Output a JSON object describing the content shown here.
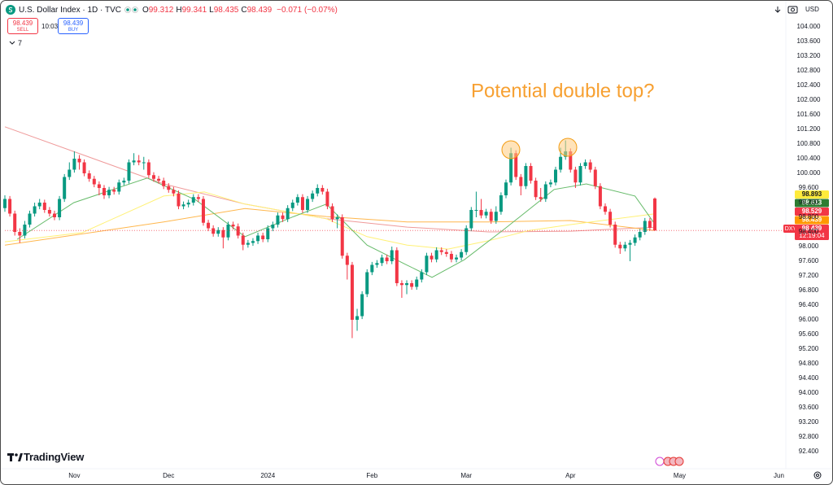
{
  "header": {
    "title": "U.S. Dollar Index · 1D · TVC",
    "ohlc_letters": [
      "O",
      "H",
      "L",
      "C"
    ],
    "change": "−0.071",
    "change_pct": "(−0.07%)",
    "sell": "SELL",
    "buy": "BUY",
    "spread": "10:03",
    "indicator_count": "7",
    "currency": "USD"
  },
  "footer": {
    "brand": "TradingView"
  },
  "chart_data": {
    "type": "candlestick",
    "annotation": "Potential double top?",
    "up_color": "#089981",
    "down_color": "#f23645",
    "xlim": [
      0,
      157.4
    ],
    "ylim": [
      91.933,
      104.711
    ],
    "xticks": [
      {
        "value": 14,
        "label": "Nov"
      },
      {
        "value": 33,
        "label": "Dec"
      },
      {
        "value": 53,
        "label": "2024"
      },
      {
        "value": 74,
        "label": "Feb"
      },
      {
        "value": 93,
        "label": "Mar"
      },
      {
        "value": 114,
        "label": "Apr"
      },
      {
        "value": 136,
        "label": "May"
      },
      {
        "value": 156,
        "label": "Jun"
      }
    ],
    "yticks": [
      {
        "value": 104.0,
        "label": "104.000"
      },
      {
        "value": 103.6,
        "label": "103.600"
      },
      {
        "value": 103.2,
        "label": "103.200"
      },
      {
        "value": 102.8,
        "label": "102.800"
      },
      {
        "value": 102.4,
        "label": "102.400"
      },
      {
        "value": 102.0,
        "label": "102.000"
      },
      {
        "value": 101.6,
        "label": "101.600"
      },
      {
        "value": 101.2,
        "label": "101.200"
      },
      {
        "value": 100.8,
        "label": "100.800"
      },
      {
        "value": 100.4,
        "label": "100.400"
      },
      {
        "value": 100.0,
        "label": "100.000"
      },
      {
        "value": 99.6,
        "label": "99.600"
      },
      {
        "value": 99.2,
        "label": "99.200"
      },
      {
        "value": 98.8,
        "label": "98.800"
      },
      {
        "value": 98.4,
        "label": "98.400"
      },
      {
        "value": 98.0,
        "label": "98.000"
      },
      {
        "value": 97.6,
        "label": "97.600"
      },
      {
        "value": 97.2,
        "label": "97.200"
      },
      {
        "value": 96.8,
        "label": "96.800"
      },
      {
        "value": 96.4,
        "label": "96.400"
      },
      {
        "value": 96.0,
        "label": "96.000"
      },
      {
        "value": 95.6,
        "label": "95.600"
      },
      {
        "value": 95.2,
        "label": "95.200"
      },
      {
        "value": 94.8,
        "label": "94.800"
      },
      {
        "value": 94.4,
        "label": "94.400"
      },
      {
        "value": 94.0,
        "label": "94.000"
      },
      {
        "value": 93.6,
        "label": "93.600"
      },
      {
        "value": 93.2,
        "label": "93.200"
      },
      {
        "value": 92.8,
        "label": "92.800"
      },
      {
        "value": 92.4,
        "label": "92.400"
      }
    ],
    "ohlc": [
      [
        99.05,
        99.4,
        98.95,
        99.3
      ],
      [
        99.3,
        99.38,
        98.82,
        98.9
      ],
      [
        98.9,
        98.98,
        98.3,
        98.4
      ],
      [
        98.4,
        98.5,
        98.1,
        98.3
      ],
      [
        98.3,
        98.7,
        98.22,
        98.6
      ],
      [
        98.6,
        98.98,
        98.52,
        98.9
      ],
      [
        98.9,
        99.2,
        98.82,
        99.1
      ],
      [
        99.1,
        99.3,
        99.02,
        99.2
      ],
      [
        99.2,
        99.28,
        98.92,
        99.0
      ],
      [
        99.0,
        99.08,
        98.82,
        98.9
      ],
      [
        98.9,
        98.98,
        98.72,
        98.8
      ],
      [
        98.8,
        99.38,
        98.72,
        99.3
      ],
      [
        99.3,
        99.98,
        99.22,
        99.9
      ],
      [
        99.9,
        100.3,
        99.82,
        100.1
      ],
      [
        100.1,
        100.6,
        100.02,
        100.4
      ],
      [
        100.4,
        100.5,
        100.1,
        100.3
      ],
      [
        100.3,
        100.38,
        99.92,
        100.0
      ],
      [
        100.0,
        100.08,
        99.77,
        99.85
      ],
      [
        99.85,
        99.93,
        99.62,
        99.7
      ],
      [
        99.7,
        99.78,
        99.4,
        99.6
      ],
      [
        99.6,
        99.68,
        99.3,
        99.4
      ],
      [
        99.4,
        99.63,
        99.32,
        99.55
      ],
      [
        99.55,
        99.63,
        99.42,
        99.5
      ],
      [
        99.5,
        99.83,
        99.42,
        99.75
      ],
      [
        99.75,
        99.88,
        99.67,
        99.8
      ],
      [
        99.8,
        100.38,
        99.72,
        100.3
      ],
      [
        100.3,
        100.55,
        100.22,
        100.35
      ],
      [
        100.35,
        100.5,
        100.22,
        100.3
      ],
      [
        100.3,
        100.45,
        100.1,
        100.3
      ],
      [
        100.3,
        100.38,
        99.87,
        99.95
      ],
      [
        99.95,
        100.03,
        99.77,
        99.85
      ],
      [
        99.85,
        99.93,
        99.72,
        99.8
      ],
      [
        99.8,
        99.88,
        99.57,
        99.65
      ],
      [
        99.65,
        99.73,
        99.47,
        99.55
      ],
      [
        99.55,
        99.63,
        99.37,
        99.45
      ],
      [
        99.45,
        99.53,
        99.02,
        99.1
      ],
      [
        99.1,
        99.23,
        99.02,
        99.15
      ],
      [
        99.15,
        99.28,
        99.07,
        99.2
      ],
      [
        99.2,
        99.43,
        99.12,
        99.35
      ],
      [
        99.35,
        99.43,
        99.22,
        99.3
      ],
      [
        99.3,
        99.38,
        98.57,
        98.65
      ],
      [
        98.65,
        98.73,
        98.42,
        98.5
      ],
      [
        98.5,
        98.58,
        98.27,
        98.35
      ],
      [
        98.35,
        98.53,
        98.27,
        98.45
      ],
      [
        98.45,
        98.53,
        97.95,
        98.25
      ],
      [
        98.25,
        98.68,
        98.17,
        98.6
      ],
      [
        98.6,
        98.68,
        98.47,
        98.55
      ],
      [
        98.55,
        98.63,
        98.22,
        98.3
      ],
      [
        98.3,
        98.38,
        97.9,
        98.05
      ],
      [
        98.05,
        98.18,
        97.97,
        98.1
      ],
      [
        98.1,
        98.23,
        98.02,
        98.15
      ],
      [
        98.15,
        98.38,
        98.07,
        98.3
      ],
      [
        98.3,
        98.38,
        98.12,
        98.2
      ],
      [
        98.2,
        98.58,
        98.12,
        98.5
      ],
      [
        98.5,
        98.68,
        98.42,
        98.6
      ],
      [
        98.6,
        98.93,
        98.52,
        98.85
      ],
      [
        98.85,
        98.93,
        98.67,
        98.75
      ],
      [
        98.75,
        99.13,
        98.67,
        99.05
      ],
      [
        99.05,
        99.28,
        98.97,
        99.2
      ],
      [
        99.2,
        99.43,
        99.12,
        99.35
      ],
      [
        99.35,
        99.43,
        98.92,
        99.0
      ],
      [
        99.0,
        99.38,
        98.92,
        99.3
      ],
      [
        99.3,
        99.53,
        99.22,
        99.45
      ],
      [
        99.45,
        99.7,
        99.37,
        99.6
      ],
      [
        99.6,
        99.68,
        99.42,
        99.5
      ],
      [
        99.5,
        99.58,
        99.02,
        99.1
      ],
      [
        99.1,
        99.18,
        98.67,
        98.75
      ],
      [
        98.75,
        98.88,
        98.5,
        98.8
      ],
      [
        98.8,
        98.88,
        97.67,
        97.75
      ],
      [
        97.75,
        97.83,
        97.1,
        97.5
      ],
      [
        97.5,
        97.58,
        95.5,
        96.0
      ],
      [
        96.0,
        96.3,
        95.7,
        96.1
      ],
      [
        96.1,
        96.78,
        96.02,
        96.7
      ],
      [
        96.7,
        97.38,
        96.62,
        97.3
      ],
      [
        97.3,
        97.58,
        97.22,
        97.5
      ],
      [
        97.5,
        97.63,
        97.42,
        97.55
      ],
      [
        97.55,
        97.78,
        97.47,
        97.7
      ],
      [
        97.7,
        97.78,
        97.52,
        97.6
      ],
      [
        97.6,
        98.0,
        97.52,
        97.9
      ],
      [
        97.9,
        97.98,
        96.92,
        97.0
      ],
      [
        97.0,
        97.08,
        96.6,
        96.95
      ],
      [
        96.95,
        97.08,
        96.7,
        97.0
      ],
      [
        97.0,
        97.08,
        96.82,
        96.9
      ],
      [
        96.9,
        97.18,
        96.82,
        97.1
      ],
      [
        97.1,
        97.38,
        97.02,
        97.3
      ],
      [
        97.3,
        97.83,
        97.22,
        97.75
      ],
      [
        97.75,
        97.83,
        97.57,
        97.65
      ],
      [
        97.65,
        97.98,
        97.57,
        97.9
      ],
      [
        97.9,
        97.98,
        97.77,
        97.85
      ],
      [
        97.85,
        97.93,
        97.72,
        97.8
      ],
      [
        97.8,
        97.88,
        97.57,
        97.65
      ],
      [
        97.65,
        97.78,
        97.57,
        97.7
      ],
      [
        97.7,
        97.93,
        97.62,
        97.85
      ],
      [
        97.85,
        98.58,
        97.77,
        98.5
      ],
      [
        98.5,
        99.08,
        98.42,
        99.0
      ],
      [
        99.0,
        99.5,
        98.8,
        99.0
      ],
      [
        99.0,
        99.3,
        98.77,
        98.85
      ],
      [
        98.85,
        99.03,
        98.77,
        98.95
      ],
      [
        98.95,
        99.03,
        98.62,
        98.7
      ],
      [
        98.7,
        99.1,
        98.62,
        98.95
      ],
      [
        98.95,
        99.48,
        98.87,
        99.4
      ],
      [
        99.4,
        99.83,
        99.32,
        99.75
      ],
      [
        99.75,
        100.7,
        99.67,
        100.55
      ],
      [
        100.55,
        100.63,
        99.82,
        99.9
      ],
      [
        99.9,
        99.98,
        99.4,
        99.65
      ],
      [
        99.65,
        100.28,
        99.57,
        100.2
      ],
      [
        100.2,
        100.28,
        99.72,
        99.8
      ],
      [
        99.8,
        99.88,
        99.27,
        99.35
      ],
      [
        99.35,
        99.6,
        99.22,
        99.3
      ],
      [
        99.3,
        99.78,
        99.22,
        99.7
      ],
      [
        99.7,
        99.83,
        99.62,
        99.75
      ],
      [
        99.75,
        100.18,
        99.67,
        100.1
      ],
      [
        100.1,
        100.7,
        100.02,
        100.45
      ],
      [
        100.45,
        100.9,
        100.37,
        100.6
      ],
      [
        100.6,
        100.68,
        100.02,
        100.1
      ],
      [
        100.1,
        100.18,
        99.6,
        99.75
      ],
      [
        99.75,
        100.28,
        99.67,
        100.2
      ],
      [
        100.2,
        100.38,
        100.12,
        100.3
      ],
      [
        100.3,
        100.38,
        100.02,
        100.1
      ],
      [
        100.1,
        100.18,
        99.57,
        99.65
      ],
      [
        99.65,
        99.73,
        99.02,
        99.1
      ],
      [
        99.1,
        99.18,
        98.87,
        98.95
      ],
      [
        98.95,
        99.03,
        98.52,
        98.6
      ],
      [
        98.6,
        98.68,
        97.97,
        98.05
      ],
      [
        98.05,
        98.13,
        97.8,
        97.95
      ],
      [
        97.95,
        98.13,
        97.87,
        98.05
      ],
      [
        98.05,
        98.18,
        97.6,
        98.1
      ],
      [
        98.1,
        98.33,
        98.02,
        98.25
      ],
      [
        98.25,
        98.48,
        98.17,
        98.4
      ],
      [
        98.4,
        98.78,
        98.32,
        98.7
      ],
      [
        98.7,
        98.78,
        98.43,
        98.51
      ],
      [
        99.312,
        99.341,
        98.435,
        98.439
      ]
    ],
    "moving_averages": [
      {
        "color": "#ef9a9a",
        "x": [
          0,
          16,
          32,
          48.4,
          64.8,
          81.1,
          97.5,
          114,
          131
        ],
        "values": [
          101.27,
          100.49,
          99.71,
          99.16,
          98.76,
          98.53,
          98.4,
          98.42,
          98.529
        ]
      },
      {
        "color": "#ffb74d",
        "x": [
          0,
          32,
          48.4,
          64.8,
          81.1,
          97.5,
          114,
          131
        ],
        "values": [
          98.04,
          98.67,
          99.04,
          98.82,
          98.67,
          98.67,
          98.71,
          98.439
        ]
      },
      {
        "color": "#fff176",
        "x": [
          0,
          15.6,
          32,
          40.2,
          48.4,
          64.8,
          73,
          81.1,
          89.3,
          97.5,
          105.7,
          114,
          131
        ],
        "values": [
          98.13,
          98.38,
          99.38,
          99.49,
          99.16,
          98.76,
          98.27,
          98.04,
          97.93,
          98.16,
          98.44,
          98.6,
          98.893
        ]
      },
      {
        "color": "#66bb6a",
        "x": [
          2.5,
          13.9,
          28.7,
          38.5,
          48.4,
          58.2,
          64.8,
          73,
          81.1,
          86.1,
          92.6,
          100.8,
          110.7,
          117.2,
          127,
          131
        ],
        "values": [
          98.2,
          99.2,
          99.87,
          99.27,
          98.27,
          98.82,
          99.16,
          98.04,
          97.49,
          97.16,
          97.64,
          98.49,
          99.56,
          99.71,
          99.38,
          98.613
        ]
      }
    ],
    "price_tags": [
      {
        "label": "98.893",
        "color": "#ffeb3b",
        "text_color": "#131722"
      },
      {
        "label": "98.613",
        "color": "#2e7d32",
        "text_color": "#ffffff"
      },
      {
        "label": "98.529",
        "color": "#f23645",
        "text_color": "#ffffff"
      },
      {
        "label": "98.439",
        "color": "#ff9800",
        "text_color": "#ffffff"
      }
    ],
    "symbol": "DXY",
    "countdown": "12:19:04"
  }
}
